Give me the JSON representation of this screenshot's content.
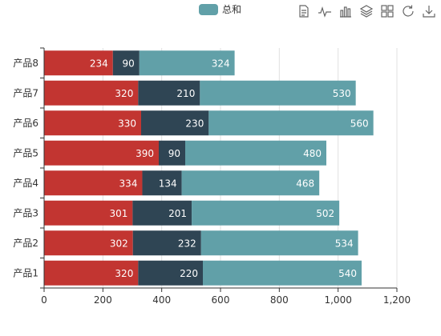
{
  "legend": {
    "label": "总和",
    "color": "#61a0a8"
  },
  "toolbox": [
    {
      "name": "data-view-icon"
    },
    {
      "name": "line-chart-icon"
    },
    {
      "name": "bar-chart-icon"
    },
    {
      "name": "stack-icon"
    },
    {
      "name": "tiled-icon"
    },
    {
      "name": "restore-icon"
    },
    {
      "name": "save-image-icon"
    }
  ],
  "chart_data": {
    "type": "bar",
    "orientation": "horizontal",
    "stacked": true,
    "categories": [
      "产品1",
      "产品2",
      "产品3",
      "产品4",
      "产品5",
      "产品6",
      "产品7",
      "产品8"
    ],
    "series": [
      {
        "color": "#c23531",
        "values": [
          320,
          302,
          301,
          334,
          390,
          330,
          320,
          234
        ]
      },
      {
        "color": "#2f4554",
        "values": [
          220,
          232,
          201,
          134,
          90,
          230,
          210,
          90
        ]
      },
      {
        "name": "总和",
        "color": "#61a0a8",
        "values": [
          540,
          534,
          502,
          468,
          480,
          560,
          530,
          324
        ]
      }
    ],
    "x_ticks": [
      "0",
      "200",
      "400",
      "600",
      "800",
      "1,000",
      "1,200"
    ],
    "xlim": [
      0,
      1200
    ],
    "grid": true
  }
}
